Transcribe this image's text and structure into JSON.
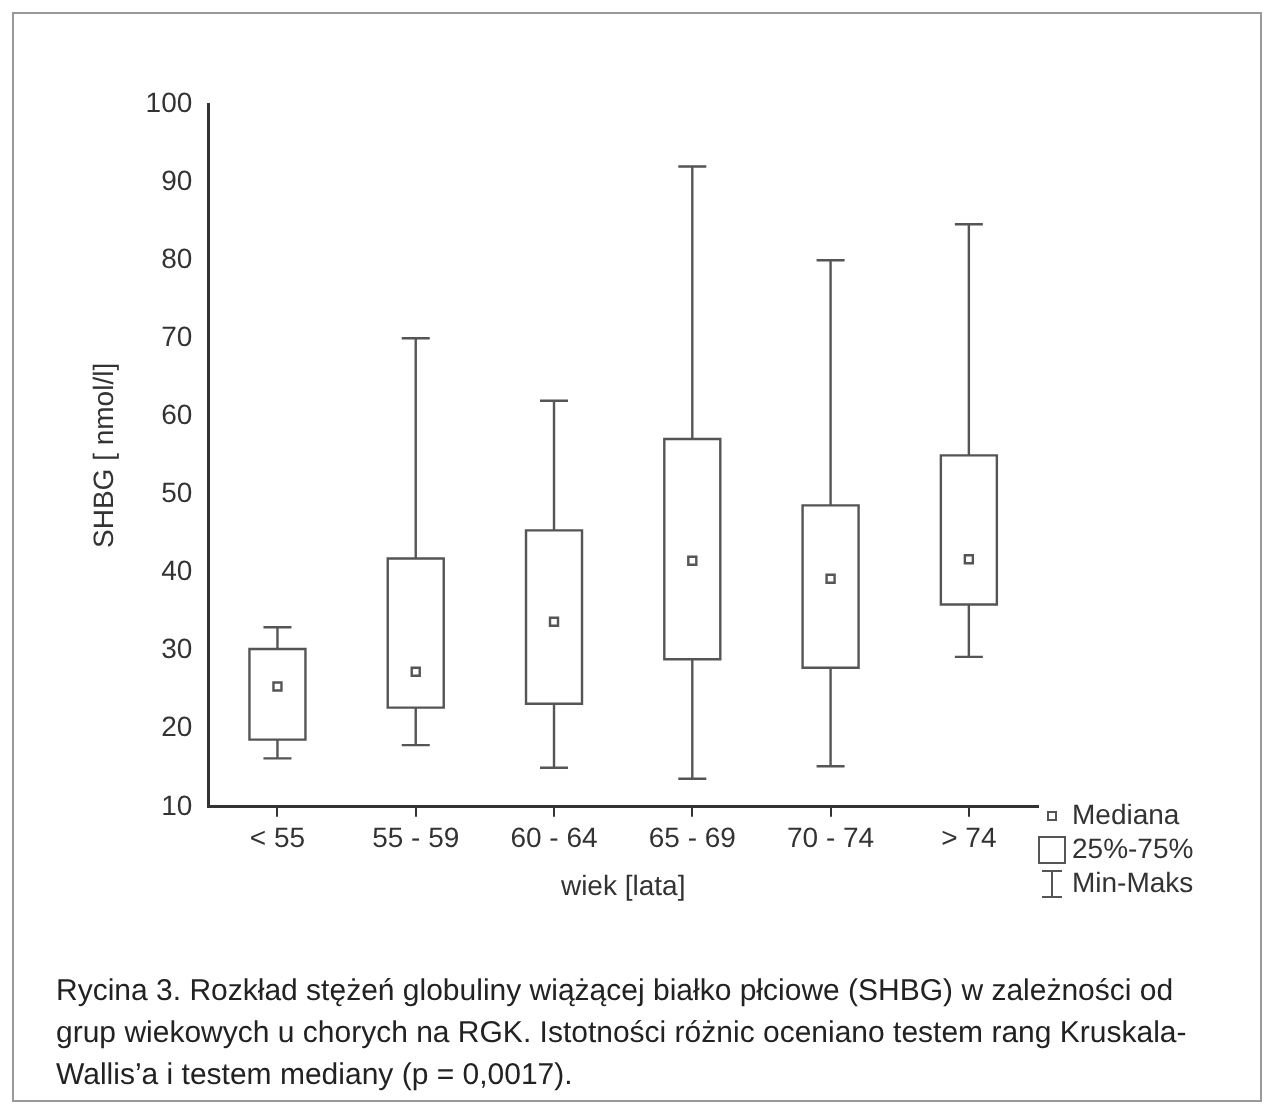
{
  "chart_data": {
    "type": "box",
    "xlabel": "wiek [lata]",
    "ylabel": "SHBG [ nmol/l]",
    "categories": [
      "< 55",
      "55 - 59",
      "60 - 64",
      "65 - 69",
      "70 - 74",
      "> 74"
    ],
    "boxes": [
      {
        "low": 16.2,
        "q1": 18.6,
        "median": 25.4,
        "q3": 30.2,
        "high": 33
      },
      {
        "low": 17.9,
        "q1": 22.7,
        "median": 27.3,
        "q3": 41.8,
        "high": 70
      },
      {
        "low": 15,
        "q1": 23.2,
        "median": 33.7,
        "q3": 45.4,
        "high": 62
      },
      {
        "low": 13.6,
        "q1": 28.9,
        "median": 41.5,
        "q3": 57.1,
        "high": 92
      },
      {
        "low": 15.2,
        "q1": 27.8,
        "median": 39.2,
        "q3": 48.6,
        "high": 80
      },
      {
        "low": 29.2,
        "q1": 35.9,
        "median": 41.7,
        "q3": 55,
        "high": 84.6
      }
    ],
    "color": "#555555",
    "ylim": [
      10,
      100
    ],
    "yticks": [
      10,
      20,
      30,
      40,
      50,
      60,
      70,
      80,
      90,
      100
    ],
    "annotations": [
      "Mediana",
      "25%-75%",
      "Min-Maks",
      "Rycina 3. Rozkład stężeń globuliny wiążącej białko płciowe (SHBG) w zależności od grup wiekowych u chorych na RGK. Istotności różnic oceniano testem rang Kruskala-Wallis’a i testem mediany (p = 0,0017)."
    ]
  }
}
